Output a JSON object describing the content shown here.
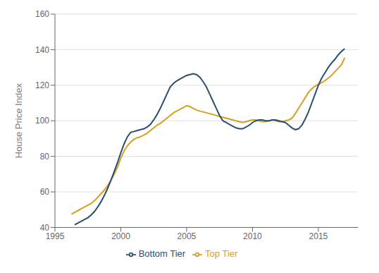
{
  "chart_data": {
    "type": "line",
    "ylabel": "House Price Index",
    "x": [
      1996.25,
      1996.5,
      1996.75,
      1997.0,
      1997.25,
      1997.5,
      1997.75,
      1998.0,
      1998.25,
      1998.5,
      1998.75,
      1999.0,
      1999.25,
      1999.5,
      1999.75,
      2000.0,
      2000.25,
      2000.5,
      2000.75,
      2001.0,
      2001.25,
      2001.5,
      2001.75,
      2002.0,
      2002.25,
      2002.5,
      2002.75,
      2003.0,
      2003.25,
      2003.5,
      2003.75,
      2004.0,
      2004.25,
      2004.5,
      2004.75,
      2005.0,
      2005.25,
      2005.5,
      2005.75,
      2006.0,
      2006.25,
      2006.5,
      2006.75,
      2007.0,
      2007.25,
      2007.5,
      2007.75,
      2008.0,
      2008.25,
      2008.5,
      2008.75,
      2009.0,
      2009.25,
      2009.5,
      2009.75,
      2010.0,
      2010.25,
      2010.5,
      2010.75,
      2011.0,
      2011.25,
      2011.5,
      2011.75,
      2012.0,
      2012.25,
      2012.5,
      2012.75,
      2013.0,
      2013.25,
      2013.5,
      2013.75,
      2014.0,
      2014.25,
      2014.5,
      2014.75,
      2015.0,
      2015.25,
      2015.5,
      2015.75,
      2016.0,
      2016.25,
      2016.5,
      2016.75,
      2017.0
    ],
    "series": [
      {
        "name": "Top Tier",
        "color": "#D4A020",
        "values": [
          47.5,
          48.5,
          49.5,
          50.5,
          51.5,
          52.5,
          53.5,
          55.0,
          57.0,
          59.0,
          61.0,
          63.5,
          66.5,
          70.0,
          74.0,
          79.0,
          83.0,
          86.0,
          88.0,
          89.5,
          90.5,
          91.0,
          92.0,
          93.0,
          94.5,
          96.0,
          97.5,
          98.5,
          100.0,
          101.5,
          103.0,
          104.5,
          105.5,
          106.5,
          107.5,
          108.5,
          108.0,
          107.0,
          106.0,
          105.5,
          105.0,
          104.5,
          104.0,
          103.5,
          103.0,
          102.5,
          102.0,
          101.5,
          101.0,
          100.5,
          100.0,
          99.5,
          99.0,
          99.5,
          100.0,
          100.5,
          100.5,
          100.0,
          99.5,
          99.5,
          100.0,
          100.5,
          100.0,
          99.5,
          99.5,
          100.0,
          100.5,
          101.5,
          104.0,
          107.0,
          110.0,
          113.0,
          116.0,
          118.0,
          119.5,
          120.5,
          121.5,
          122.5,
          124.0,
          125.5,
          127.5,
          129.5,
          131.5,
          135.5
        ]
      },
      {
        "name": "Bottom Tier",
        "color": "#2A4F6E",
        "values": [
          null,
          41.5,
          42.5,
          43.5,
          44.5,
          45.5,
          47.0,
          49.0,
          51.5,
          54.5,
          58.0,
          62.0,
          66.5,
          71.5,
          76.5,
          82.0,
          87.0,
          91.0,
          93.5,
          94.0,
          94.5,
          95.0,
          95.5,
          96.5,
          98.0,
          100.5,
          103.5,
          107.0,
          111.0,
          115.0,
          119.0,
          121.0,
          122.5,
          123.5,
          124.5,
          125.5,
          126.0,
          126.5,
          126.0,
          124.5,
          122.0,
          119.0,
          115.0,
          111.0,
          107.0,
          103.0,
          100.0,
          99.0,
          98.0,
          97.0,
          96.0,
          95.5,
          95.5,
          96.5,
          97.5,
          99.0,
          100.0,
          100.5,
          100.5,
          100.0,
          100.0,
          100.5,
          100.5,
          100.0,
          99.5,
          99.0,
          97.5,
          96.0,
          95.0,
          95.5,
          97.5,
          101.0,
          105.0,
          110.0,
          115.0,
          120.0,
          124.0,
          127.0,
          130.0,
          132.5,
          134.5,
          137.0,
          139.0,
          140.5
        ]
      }
    ],
    "xlim": [
      1995,
      2018
    ],
    "xticks": [
      1995,
      2000,
      2005,
      2010,
      2015
    ],
    "ylim": [
      40,
      160
    ],
    "yticks": [
      40,
      60,
      80,
      100,
      120,
      140,
      160
    ],
    "grid": true,
    "legend": "bottom"
  }
}
